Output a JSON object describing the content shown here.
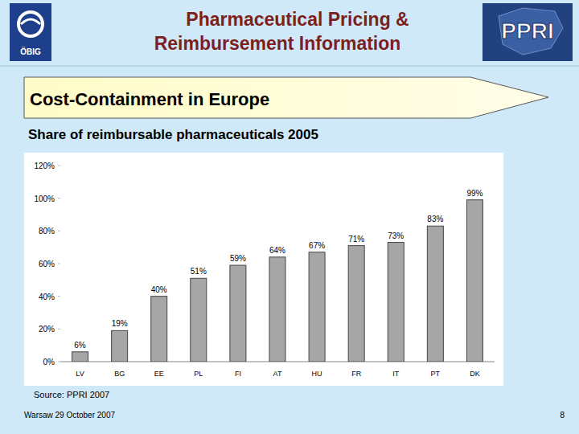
{
  "slide": {
    "title_lines": [
      "Pharmaceutical Pricing &",
      "Reimbursement Information"
    ],
    "left_logo": "ÖBIG",
    "right_logo": "PPRI",
    "banner": "Cost-Containment in Europe",
    "source": "Source: PPRI 2007",
    "footer": "Warsaw 29 October 2007",
    "page": "8"
  },
  "chart_data": {
    "type": "bar",
    "title": "Share of reimbursable pharmaceuticals 2005",
    "categories": [
      "LV",
      "BG",
      "EE",
      "PL",
      "FI",
      "AT",
      "HU",
      "FR",
      "IT",
      "PT",
      "DK"
    ],
    "values": [
      6,
      19,
      40,
      51,
      59,
      64,
      67,
      71,
      73,
      83,
      99
    ],
    "value_labels": [
      "6%",
      "19%",
      "40%",
      "51%",
      "59%",
      "64%",
      "67%",
      "71%",
      "73%",
      "83%",
      "99%"
    ],
    "color": "#a6a6a6",
    "ylim": [
      0,
      120
    ],
    "yticks": [
      {
        "value": 0,
        "label": "0%"
      },
      {
        "value": 20,
        "label": "20%"
      },
      {
        "value": 40,
        "label": "40%"
      },
      {
        "value": 60,
        "label": "60%"
      },
      {
        "value": 80,
        "label": "80%"
      },
      {
        "value": 100,
        "label": "100%"
      },
      {
        "value": 120,
        "label": "120%"
      }
    ],
    "grid": false,
    "data_labels": true
  }
}
